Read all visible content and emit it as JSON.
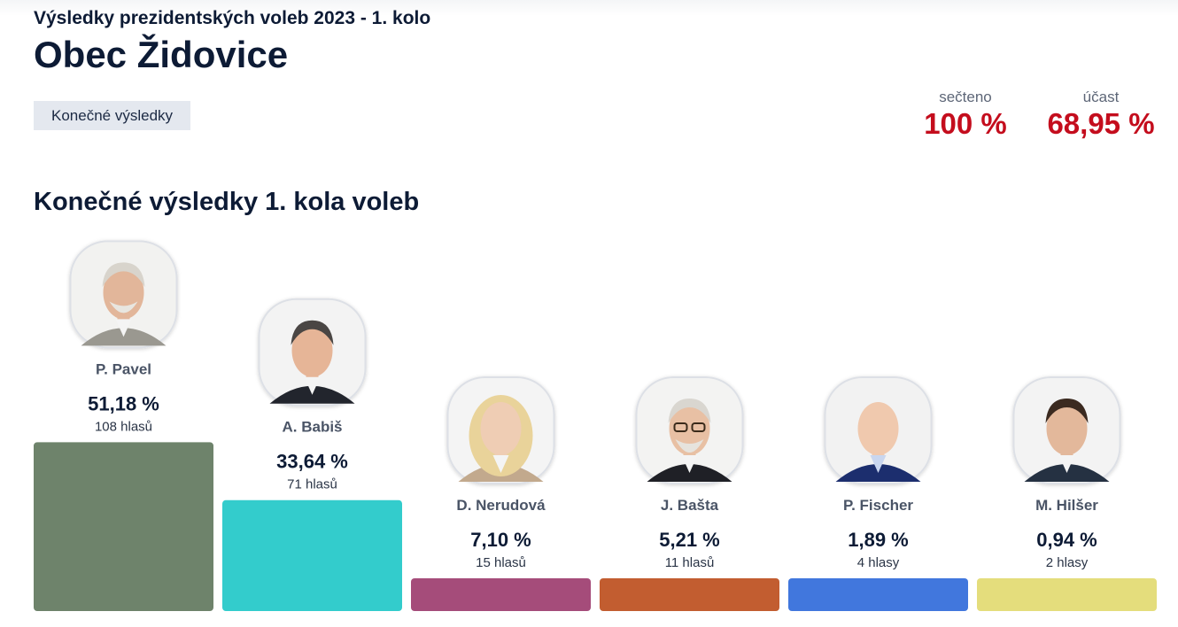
{
  "header": {
    "supertitle": "Výsledky prezidentských voleb 2023 - 1. kolo",
    "title": "Obec Židovice",
    "status_tag": "Konečné výsledky"
  },
  "stats": {
    "counted_label": "sečteno",
    "counted_value": "100 %",
    "turnout_label": "účast",
    "turnout_value": "68,95 %"
  },
  "section_title": "Konečné výsledky 1. kola voleb",
  "colors": {
    "accent": "#c40d1d",
    "title": "#0d1b35"
  },
  "chart_data": {
    "type": "bar",
    "categories": [
      "P. Pavel",
      "A. Babiš",
      "D. Nerudová",
      "J. Bašta",
      "P. Fischer",
      "M. Hilšer"
    ],
    "values": [
      51.18,
      33.64,
      7.1,
      5.21,
      1.89,
      0.94
    ],
    "value_labels": [
      "51,18 %",
      "33,64 %",
      "7,10 %",
      "5,21 %",
      "1,89 %",
      "0,94 %"
    ],
    "votes": [
      108,
      71,
      15,
      11,
      4,
      2
    ],
    "vote_labels": [
      "108 hlasů",
      "71 hlasů",
      "15 hlasů",
      "11 hlasů",
      "4 hlasy",
      "2 hlasy"
    ],
    "colors": [
      "#6e836b",
      "#33cccc",
      "#a54c7a",
      "#c25d30",
      "#4177dd",
      "#e4dd7c"
    ],
    "title": "Konečné výsledky 1. kola voleb",
    "xlabel": "",
    "ylabel": ""
  }
}
